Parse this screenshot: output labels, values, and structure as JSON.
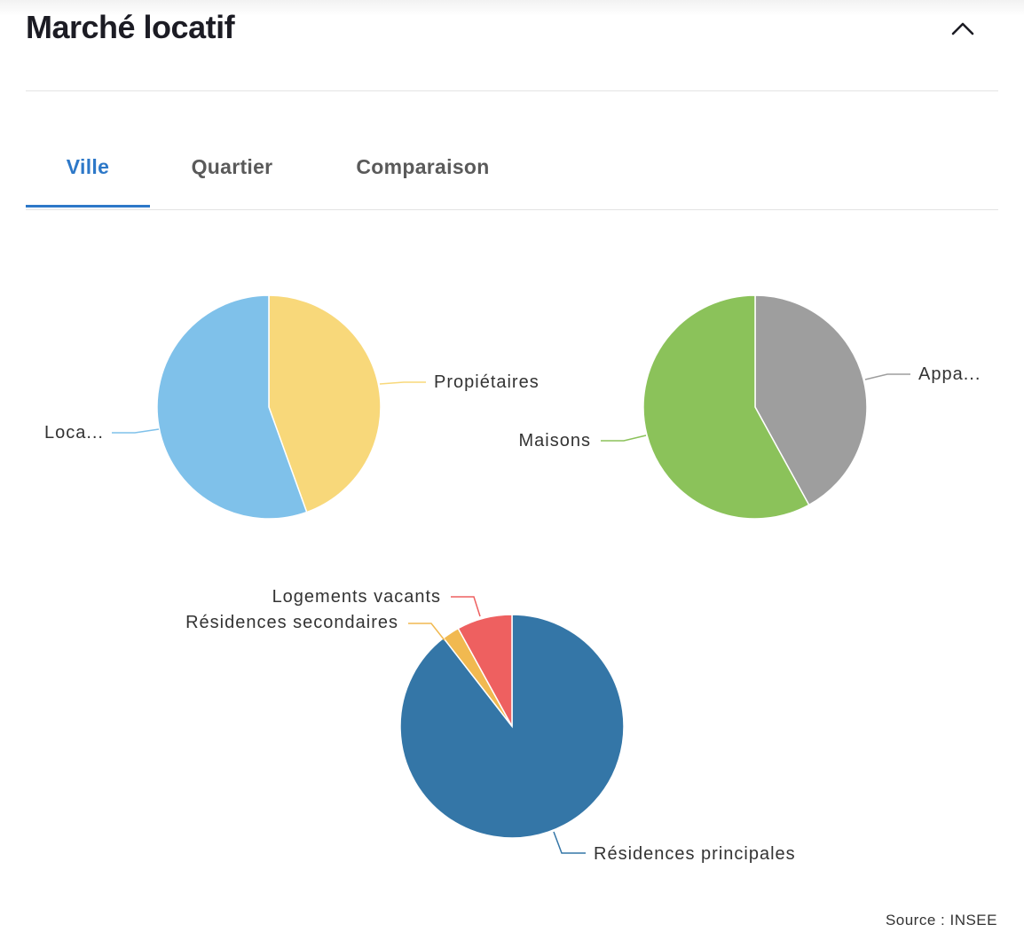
{
  "header": {
    "title": "Marché locatif"
  },
  "tabs": [
    {
      "label": "Ville",
      "active": true
    },
    {
      "label": "Quartier",
      "active": false
    },
    {
      "label": "Comparaison",
      "active": false
    }
  ],
  "colors": {
    "accent": "#2d78c8",
    "locataires": "#7fc1ea",
    "proprietaires": "#f8d87a",
    "appartements": "#9e9e9e",
    "maisons": "#8bc25a",
    "residences_principales": "#3476a7",
    "residences_secondaires": "#f1b950",
    "logements_vacants": "#ee6060"
  },
  "chart_data": [
    {
      "type": "pie",
      "slices": [
        {
          "label": "Propiétaires",
          "value": 44.5,
          "color": "#f8d87a"
        },
        {
          "label": "Loca...",
          "value": 55.5,
          "color": "#7fc1ea"
        }
      ]
    },
    {
      "type": "pie",
      "slices": [
        {
          "label": "Appa...",
          "value": 42,
          "color": "#9e9e9e"
        },
        {
          "label": "Maisons",
          "value": 58,
          "color": "#8bc25a"
        }
      ]
    },
    {
      "type": "pie",
      "slices": [
        {
          "label": "Résidences principales",
          "value": 89.5,
          "color": "#3476a7"
        },
        {
          "label": "Résidences secondaires",
          "value": 2.5,
          "color": "#f1b950"
        },
        {
          "label": "Logements vacants",
          "value": 8,
          "color": "#ee6060"
        }
      ]
    }
  ],
  "footer": {
    "source": "Source : INSEE"
  }
}
